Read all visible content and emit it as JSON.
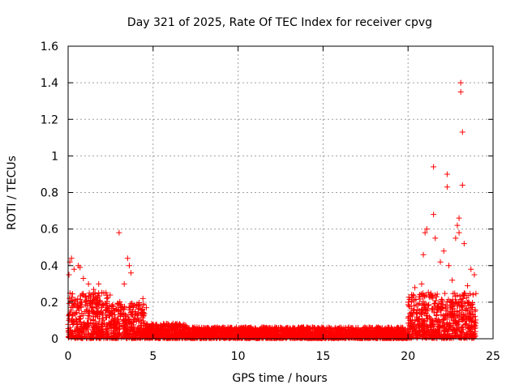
{
  "chart_data": {
    "type": "scatter",
    "title": "Day 321 of 2025, Rate Of TEC Index for receiver cpvg",
    "xlabel": "GPS time / hours",
    "ylabel": "ROTI / TECUs",
    "xlim": [
      0,
      25
    ],
    "ylim": [
      0,
      1.6
    ],
    "xticks": [
      0,
      5,
      10,
      15,
      20,
      25
    ],
    "xtick_labels": [
      "0",
      "5",
      "10",
      "15",
      "20",
      "25"
    ],
    "yticks": [
      0,
      0.2,
      0.4,
      0.6,
      0.8,
      1.0,
      1.2,
      1.4,
      1.6
    ],
    "ytick_labels": [
      "0",
      "0.2",
      "0.4",
      "0.6",
      "0.8",
      "1",
      "1.2",
      "1.4",
      "1.6"
    ],
    "grid": true,
    "marker": "+",
    "color": "#ff0000",
    "series": [
      {
        "name": "ROTI",
        "notable_points": [
          {
            "x": 0.05,
            "y": 0.35
          },
          {
            "x": 0.1,
            "y": 0.42
          },
          {
            "x": 0.2,
            "y": 0.44
          },
          {
            "x": 0.35,
            "y": 0.38
          },
          {
            "x": 0.6,
            "y": 0.4
          },
          {
            "x": 0.7,
            "y": 0.39
          },
          {
            "x": 0.9,
            "y": 0.33
          },
          {
            "x": 1.2,
            "y": 0.3
          },
          {
            "x": 1.5,
            "y": 0.27
          },
          {
            "x": 1.8,
            "y": 0.3
          },
          {
            "x": 2.1,
            "y": 0.25
          },
          {
            "x": 3.0,
            "y": 0.58
          },
          {
            "x": 3.3,
            "y": 0.3
          },
          {
            "x": 3.5,
            "y": 0.44
          },
          {
            "x": 3.6,
            "y": 0.4
          },
          {
            "x": 3.7,
            "y": 0.36
          },
          {
            "x": 4.4,
            "y": 0.22
          },
          {
            "x": 4.6,
            "y": 0.17
          },
          {
            "x": 20.4,
            "y": 0.28
          },
          {
            "x": 20.8,
            "y": 0.3
          },
          {
            "x": 20.9,
            "y": 0.46
          },
          {
            "x": 21.0,
            "y": 0.58
          },
          {
            "x": 21.1,
            "y": 0.6
          },
          {
            "x": 21.5,
            "y": 0.68
          },
          {
            "x": 21.5,
            "y": 0.94
          },
          {
            "x": 21.6,
            "y": 0.55
          },
          {
            "x": 21.9,
            "y": 0.42
          },
          {
            "x": 22.1,
            "y": 0.48
          },
          {
            "x": 22.3,
            "y": 0.83
          },
          {
            "x": 22.3,
            "y": 0.9
          },
          {
            "x": 22.4,
            "y": 0.4
          },
          {
            "x": 22.6,
            "y": 0.32
          },
          {
            "x": 22.8,
            "y": 0.55
          },
          {
            "x": 22.9,
            "y": 0.62
          },
          {
            "x": 23.0,
            "y": 0.66
          },
          {
            "x": 23.0,
            "y": 0.58
          },
          {
            "x": 23.1,
            "y": 1.35
          },
          {
            "x": 23.1,
            "y": 1.4
          },
          {
            "x": 23.2,
            "y": 1.13
          },
          {
            "x": 23.2,
            "y": 0.84
          },
          {
            "x": 23.3,
            "y": 0.52
          },
          {
            "x": 23.5,
            "y": 0.29
          },
          {
            "x": 23.7,
            "y": 0.38
          },
          {
            "x": 23.9,
            "y": 0.35
          }
        ],
        "baseline_envelope": [
          {
            "x_range": [
              0,
              2.5
            ],
            "y_max": 0.25
          },
          {
            "x_range": [
              2.5,
              4.5
            ],
            "y_max": 0.2
          },
          {
            "x_range": [
              4.5,
              7
            ],
            "y_max": 0.08
          },
          {
            "x_range": [
              7,
              20
            ],
            "y_max": 0.06
          },
          {
            "x_range": [
              20,
              24
            ],
            "y_max": 0.25
          }
        ]
      }
    ]
  }
}
